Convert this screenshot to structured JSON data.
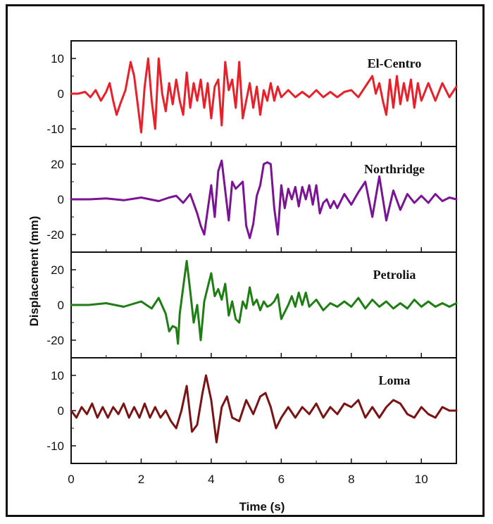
{
  "chart_data": {
    "type": "line",
    "xlabel": "Time (s)",
    "ylabel": "Displacement (mm)",
    "xlim": [
      0,
      11
    ],
    "x_ticks": [
      "0",
      "2",
      "4",
      "6",
      "8",
      "10"
    ],
    "x_tick_values": [
      0,
      2,
      4,
      6,
      8,
      10
    ],
    "grid": false,
    "series": [
      {
        "name": "El-Centro",
        "color": "#e8202a",
        "ylim": [
          -15,
          15
        ],
        "y_ticks": [
          "10",
          "0",
          "-10"
        ],
        "y_tick_values": [
          10,
          0,
          -10
        ],
        "x": [
          0,
          0.2,
          0.4,
          0.55,
          0.7,
          0.85,
          1.0,
          1.1,
          1.2,
          1.3,
          1.4,
          1.55,
          1.7,
          1.8,
          1.9,
          2.0,
          2.1,
          2.2,
          2.3,
          2.4,
          2.5,
          2.6,
          2.7,
          2.8,
          2.9,
          3.0,
          3.1,
          3.2,
          3.3,
          3.4,
          3.5,
          3.6,
          3.7,
          3.8,
          3.9,
          4.0,
          4.1,
          4.2,
          4.3,
          4.4,
          4.5,
          4.6,
          4.7,
          4.8,
          4.9,
          5.0,
          5.1,
          5.2,
          5.3,
          5.4,
          5.5,
          5.6,
          5.7,
          5.8,
          5.9,
          6.0,
          6.2,
          6.4,
          6.6,
          6.8,
          7.0,
          7.2,
          7.4,
          7.6,
          7.8,
          8.0,
          8.2,
          8.4,
          8.6,
          8.7,
          8.8,
          8.9,
          9.0,
          9.1,
          9.2,
          9.3,
          9.4,
          9.5,
          9.6,
          9.7,
          9.8,
          9.9,
          10.0,
          10.2,
          10.4,
          10.6,
          10.8,
          11.0
        ],
        "values": [
          0,
          0,
          0.5,
          -1,
          1,
          -2,
          0.5,
          3,
          -2,
          -6,
          -3,
          1,
          9,
          5,
          -3,
          -11,
          2,
          10,
          -2,
          -10,
          10,
          0,
          -5,
          3,
          -3,
          4,
          -2,
          -6,
          6,
          -4,
          3,
          -2,
          4,
          -4,
          3,
          -7,
          2,
          4,
          -9,
          9,
          1,
          4,
          -4,
          9,
          -7,
          -2,
          3,
          -4,
          2,
          -6,
          1,
          -2,
          3,
          -2,
          2,
          -1,
          1,
          -1,
          0.5,
          -1,
          1,
          -1,
          0.5,
          -1,
          0.5,
          1,
          -1,
          2,
          5,
          0,
          3,
          -2,
          -6,
          4,
          -4,
          5,
          -3,
          3,
          -2,
          4,
          -4,
          3,
          -2,
          3,
          -2,
          3,
          -1,
          2
        ]
      },
      {
        "name": "Northridge",
        "color": "#7a1394",
        "ylim": [
          -30,
          30
        ],
        "y_ticks": [
          "20",
          "0",
          "-20"
        ],
        "y_tick_values": [
          20,
          0,
          -20
        ],
        "x": [
          0,
          0.5,
          1.0,
          1.5,
          2.0,
          2.5,
          2.8,
          3.0,
          3.2,
          3.4,
          3.6,
          3.7,
          3.8,
          3.9,
          4.0,
          4.1,
          4.2,
          4.3,
          4.4,
          4.5,
          4.6,
          4.7,
          4.8,
          4.9,
          5.0,
          5.1,
          5.2,
          5.3,
          5.4,
          5.5,
          5.6,
          5.7,
          5.8,
          5.9,
          6.0,
          6.1,
          6.2,
          6.3,
          6.4,
          6.5,
          6.6,
          6.7,
          6.8,
          6.9,
          7.0,
          7.1,
          7.2,
          7.3,
          7.4,
          7.5,
          7.6,
          7.8,
          8.0,
          8.2,
          8.4,
          8.6,
          8.8,
          9.0,
          9.2,
          9.4,
          9.6,
          9.8,
          10.0,
          10.2,
          10.4,
          10.6,
          10.8,
          11.0
        ],
        "values": [
          0,
          0,
          0.5,
          -0.5,
          1,
          -1,
          1,
          2,
          -2,
          3,
          -8,
          -15,
          -20,
          -6,
          8,
          -10,
          16,
          22,
          5,
          -12,
          10,
          6,
          8,
          10,
          -15,
          -22,
          -14,
          2,
          8,
          20,
          21,
          20,
          -5,
          -20,
          8,
          -5,
          6,
          0,
          7,
          -4,
          7,
          0,
          8,
          -3,
          8,
          -8,
          -2,
          0,
          -5,
          -1,
          -5,
          3,
          -3,
          4,
          10,
          -10,
          13,
          -12,
          5,
          -6,
          3,
          -2,
          2,
          -2,
          3,
          -1,
          1,
          0
        ]
      },
      {
        "name": "Petrolia",
        "color": "#1e7d13",
        "ylim": [
          -30,
          30
        ],
        "y_ticks": [
          "20",
          "0",
          "-20"
        ],
        "y_tick_values": [
          20,
          0,
          -20
        ],
        "x": [
          0,
          0.5,
          1.0,
          1.5,
          2.0,
          2.3,
          2.5,
          2.7,
          2.8,
          2.9,
          3.0,
          3.05,
          3.1,
          3.2,
          3.3,
          3.4,
          3.5,
          3.6,
          3.7,
          3.8,
          3.9,
          4.0,
          4.1,
          4.2,
          4.3,
          4.4,
          4.5,
          4.6,
          4.7,
          4.8,
          4.9,
          5.0,
          5.1,
          5.2,
          5.3,
          5.4,
          5.5,
          5.6,
          5.7,
          5.8,
          5.9,
          6.0,
          6.1,
          6.2,
          6.3,
          6.4,
          6.5,
          6.6,
          6.7,
          6.8,
          7.0,
          7.2,
          7.4,
          7.6,
          7.8,
          8.0,
          8.2,
          8.4,
          8.6,
          8.8,
          9.0,
          9.2,
          9.4,
          9.6,
          9.8,
          10.0,
          10.2,
          10.4,
          10.6,
          10.8,
          11.0
        ],
        "values": [
          0,
          0,
          1,
          -1,
          2,
          -2,
          4,
          -5,
          -15,
          -12,
          -13,
          -22,
          -5,
          10,
          25,
          8,
          -10,
          0,
          -20,
          2,
          10,
          18,
          5,
          9,
          3,
          12,
          -6,
          2,
          -8,
          -10,
          2,
          -2,
          10,
          0,
          3,
          -3,
          2,
          -1,
          0,
          2,
          6,
          -8,
          -4,
          0,
          5,
          -1,
          7,
          0,
          7,
          -1,
          3,
          -3,
          1,
          -1,
          2,
          -1,
          4,
          -2,
          3,
          -1,
          2,
          -2,
          1,
          -2,
          3,
          -1,
          2,
          -1,
          1,
          -1,
          1
        ]
      },
      {
        "name": "Loma",
        "color": "#7a1414",
        "ylim": [
          -15,
          15
        ],
        "y_ticks": [
          "10",
          "0",
          "-10"
        ],
        "y_tick_values": [
          10,
          0,
          -10
        ],
        "x": [
          0,
          0.15,
          0.3,
          0.45,
          0.6,
          0.75,
          0.9,
          1.05,
          1.2,
          1.35,
          1.5,
          1.65,
          1.8,
          1.95,
          2.1,
          2.25,
          2.4,
          2.55,
          2.7,
          2.85,
          3.0,
          3.15,
          3.3,
          3.45,
          3.6,
          3.75,
          3.85,
          4.0,
          4.15,
          4.3,
          4.45,
          4.6,
          4.8,
          5.0,
          5.2,
          5.4,
          5.55,
          5.7,
          5.85,
          6.0,
          6.2,
          6.4,
          6.6,
          6.8,
          7.0,
          7.2,
          7.4,
          7.6,
          7.8,
          8.0,
          8.2,
          8.4,
          8.6,
          8.8,
          9.0,
          9.2,
          9.4,
          9.6,
          9.8,
          10.0,
          10.2,
          10.4,
          10.6,
          10.8,
          11.0
        ],
        "values": [
          0,
          -2,
          1,
          -1,
          2,
          -2,
          1,
          -2,
          1,
          -1,
          2,
          -2,
          1,
          -2,
          2,
          -2,
          1,
          -2,
          0,
          -3,
          -5,
          0,
          7,
          -6,
          -4,
          5,
          10,
          3,
          -9,
          1,
          4,
          -2,
          -3,
          3,
          -1,
          4,
          5,
          1,
          -5,
          -2,
          1,
          -2,
          1,
          -1,
          2,
          -2,
          1,
          -1,
          2,
          1,
          3,
          -2,
          1,
          -2,
          1,
          3,
          2,
          -1,
          -2,
          1,
          -1,
          -2,
          1,
          0,
          0
        ]
      }
    ]
  }
}
